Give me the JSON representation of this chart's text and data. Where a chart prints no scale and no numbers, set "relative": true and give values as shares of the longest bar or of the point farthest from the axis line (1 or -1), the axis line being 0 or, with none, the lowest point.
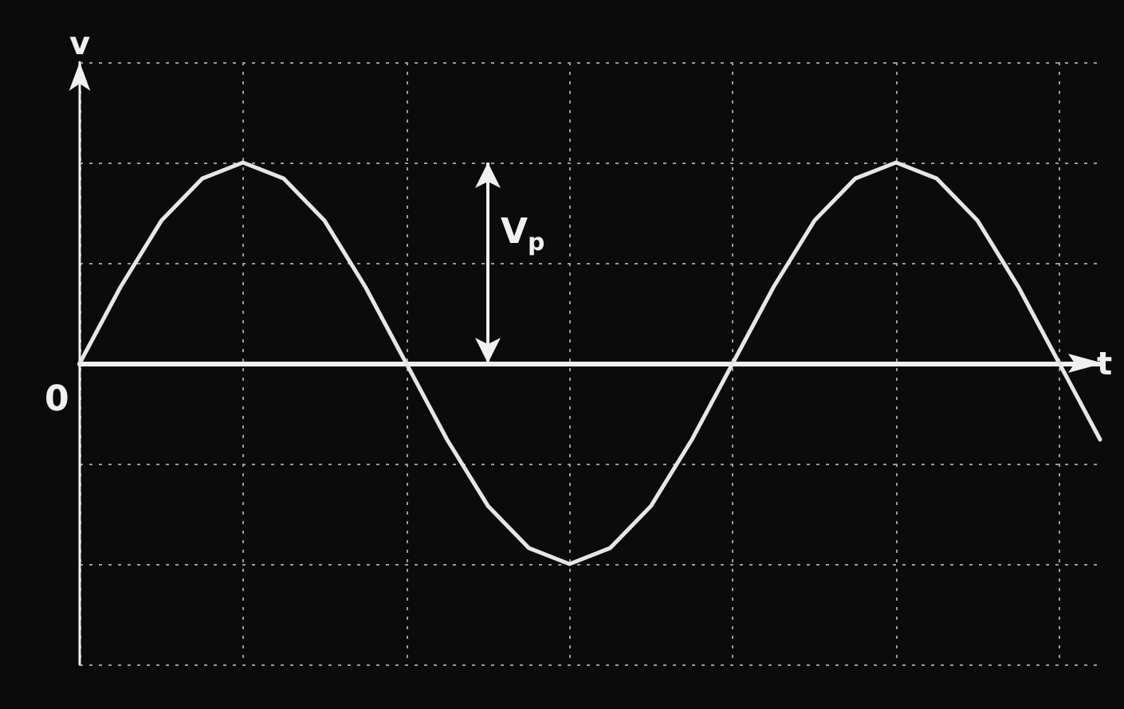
{
  "chart_data": {
    "type": "line",
    "xlabel": "t",
    "ylabel": "v",
    "relative": true,
    "categories": [
      null,
      null,
      null,
      null,
      null,
      null,
      null,
      null,
      null,
      null,
      null,
      null,
      null,
      null,
      null,
      null,
      null,
      null,
      null,
      null,
      null,
      null,
      null,
      null,
      null,
      null
    ],
    "series": [
      {
        "color": "#e6e6e6",
        "values": [
          0,
          0.38,
          0.71,
          0.92,
          1,
          0.92,
          0.71,
          0.38,
          0,
          -0.38,
          -0.71,
          -0.92,
          -1,
          -0.92,
          -0.71,
          -0.38,
          0,
          0.38,
          0.71,
          0.92,
          1,
          0.92,
          0.71,
          0.38,
          0,
          -0.38
        ]
      }
    ],
    "annotations": [
      "0",
      "V$_{p}$"
    ],
    "grid": true,
    "marker": "none",
    "line_style": "solid"
  }
}
